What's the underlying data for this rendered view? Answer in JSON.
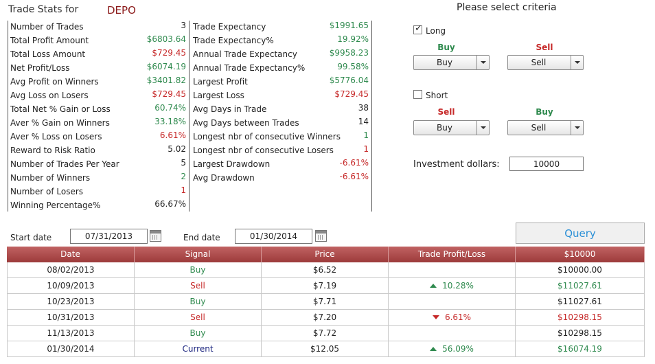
{
  "header": {
    "label": "Trade Stats for",
    "symbol": "DEPO"
  },
  "stats_left": [
    {
      "label": "Number of Trades",
      "value": "3",
      "color": "black"
    },
    {
      "label": "Total Profit Amount",
      "value": "$6803.64",
      "color": "green"
    },
    {
      "label": "Total Loss Amount",
      "value": "$729.45",
      "color": "red"
    },
    {
      "label": "Net Profit/Loss",
      "value": "$6074.19",
      "color": "green"
    },
    {
      "label": "Avg Profit on Winners",
      "value": "$3401.82",
      "color": "green"
    },
    {
      "label": "Avg Loss on Losers",
      "value": "$729.45",
      "color": "red"
    },
    {
      "label": "Total Net % Gain or Loss",
      "value": "60.74%",
      "color": "green"
    },
    {
      "label": "Aver % Gain on Winners",
      "value": "33.18%",
      "color": "green"
    },
    {
      "label": "Aver % Loss on Losers",
      "value": "6.61%",
      "color": "red"
    },
    {
      "label": "Reward to Risk Ratio",
      "value": "5.02",
      "color": "black"
    },
    {
      "label": "Number of Trades Per Year",
      "value": "5",
      "color": "black"
    },
    {
      "label": "Number of Winners",
      "value": "2",
      "color": "green"
    },
    {
      "label": "Number of Losers",
      "value": "1",
      "color": "red"
    },
    {
      "label": "Winning Percentage%",
      "value": "66.67%",
      "color": "black"
    }
  ],
  "stats_right": [
    {
      "label": "Trade Expectancy",
      "value": "$1991.65",
      "color": "green"
    },
    {
      "label": "Trade Expectancy%",
      "value": "19.92%",
      "color": "green"
    },
    {
      "label": "Annual Trade Expectancy",
      "value": "$9958.23",
      "color": "green"
    },
    {
      "label": "Annual Trade Expectancy%",
      "value": "99.58%",
      "color": "green"
    },
    {
      "label": "Largest Profit",
      "value": "$5776.04",
      "color": "green"
    },
    {
      "label": "Largest Loss",
      "value": "$729.45",
      "color": "red"
    },
    {
      "label": "Avg Days in Trade",
      "value": "38",
      "color": "black"
    },
    {
      "label": "Avg Days between Trades",
      "value": "14",
      "color": "black"
    },
    {
      "label": "Longest nbr of consecutive Winners",
      "value": "1",
      "color": "green"
    },
    {
      "label": "Longest nbr of consecutive Losers",
      "value": "1",
      "color": "red"
    },
    {
      "label": "Largest Drawdown",
      "value": "-6.61%",
      "color": "red"
    },
    {
      "label": "Avg Drawdown",
      "value": "-6.61%",
      "color": "red"
    }
  ],
  "criteria": {
    "title": "Please select criteria",
    "long_label": "Long",
    "long_checked": true,
    "long_buy_label": "Buy",
    "long_sell_label": "Sell",
    "long_buy_value": "Buy",
    "long_sell_value": "Sell",
    "short_label": "Short",
    "short_checked": false,
    "short_sell_label": "Sell",
    "short_buy_label": "Buy",
    "short_sell_value": "Buy",
    "short_buy_value": "Sell",
    "investment_label": "Investment dollars:",
    "investment_value": "10000"
  },
  "dates": {
    "start_label": "Start date",
    "start_value": "07/31/2013",
    "end_label": "End date",
    "end_value": "01/30/2014",
    "query_label": "Query"
  },
  "table": {
    "headers": [
      "Date",
      "Signal",
      "Price",
      "Trade Profit/Loss",
      "$10000"
    ],
    "rows": [
      {
        "date": "08/02/2013",
        "signal": "Buy",
        "signal_color": "green",
        "price": "$6.52",
        "pl": "",
        "pl_dir": "",
        "value": "$10000.00",
        "value_color": "black"
      },
      {
        "date": "10/09/2013",
        "signal": "Sell",
        "signal_color": "red",
        "price": "$7.19",
        "pl": "10.28%",
        "pl_dir": "up",
        "value": "$11027.61",
        "value_color": "green"
      },
      {
        "date": "10/23/2013",
        "signal": "Buy",
        "signal_color": "green",
        "price": "$7.71",
        "pl": "",
        "pl_dir": "",
        "value": "$11027.61",
        "value_color": "black"
      },
      {
        "date": "10/31/2013",
        "signal": "Sell",
        "signal_color": "red",
        "price": "$7.20",
        "pl": "6.61%",
        "pl_dir": "down",
        "value": "$10298.15",
        "value_color": "red"
      },
      {
        "date": "11/13/2013",
        "signal": "Buy",
        "signal_color": "green",
        "price": "$7.72",
        "pl": "",
        "pl_dir": "",
        "value": "$10298.15",
        "value_color": "black"
      },
      {
        "date": "01/30/2014",
        "signal": "Current",
        "signal_color": "blue",
        "price": "$12.05",
        "pl": "56.09%",
        "pl_dir": "up",
        "value": "$16074.19",
        "value_color": "green"
      }
    ]
  }
}
